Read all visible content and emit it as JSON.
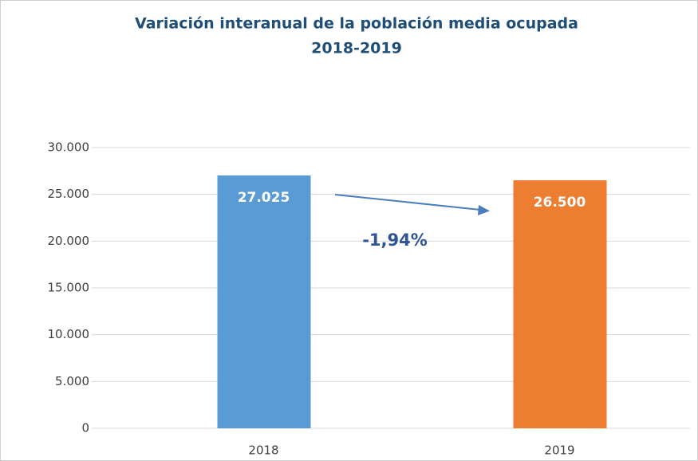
{
  "chart_data": {
    "type": "bar",
    "title": "Variación interanual de la población media ocupada",
    "subtitle": "2018-2019",
    "categories": [
      "2018",
      "2019"
    ],
    "values": [
      27025,
      26500
    ],
    "value_labels": [
      "27.025",
      "26.500"
    ],
    "colors": [
      "#5b9bd5",
      "#ed7d31"
    ],
    "annotation": "-1,94%",
    "ylim": [
      0,
      30000
    ],
    "yticks": [
      0,
      {
        "value": 5000,
        "label": "5.000"
      },
      {
        "value": 10000,
        "label": "10.000"
      },
      {
        "value": 15000,
        "label": "15.000"
      },
      {
        "value": 20000,
        "label": "20.000"
      },
      {
        "value": 25000,
        "label": "25.000"
      },
      {
        "value": 30000,
        "label": "30.000"
      }
    ],
    "grid": true
  }
}
